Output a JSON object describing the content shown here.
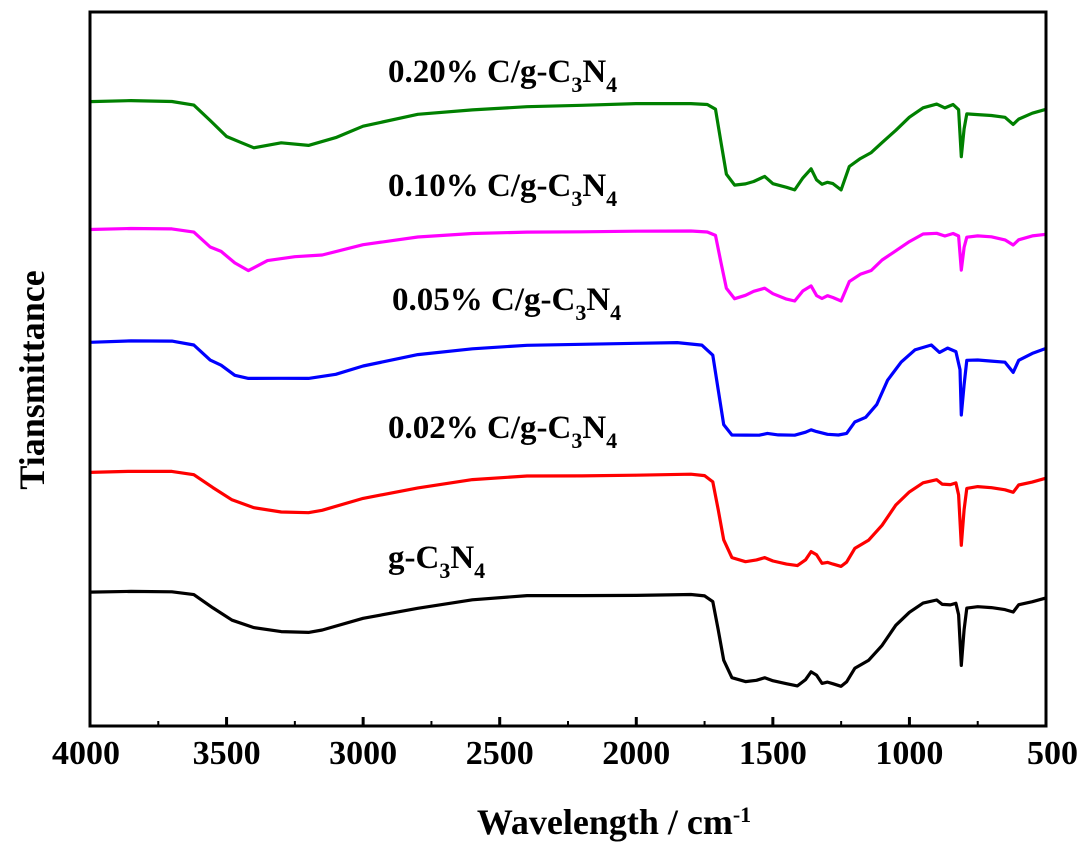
{
  "chart_data": {
    "type": "line",
    "title": "",
    "xlabel": "Wavelength / cm",
    "xlabel_superscript": "-1",
    "ylabel": "Tiansmittance",
    "x_reversed": true,
    "xlim": [
      4000,
      500
    ],
    "xticks": [
      4000,
      3500,
      3000,
      2500,
      2000,
      1500,
      1000,
      500
    ],
    "yticks_shown": false,
    "grid": false,
    "legend": "inline labels",
    "series": [
      {
        "name": "g-C3N4",
        "label_parts": [
          "g-C",
          "3",
          "N",
          "4"
        ],
        "color": "#000000",
        "points": [
          [
            4000,
            0.98
          ],
          [
            3850,
            0.99
          ],
          [
            3700,
            0.985
          ],
          [
            3620,
            0.95
          ],
          [
            3550,
            0.82
          ],
          [
            3480,
            0.7
          ],
          [
            3400,
            0.62
          ],
          [
            3300,
            0.58
          ],
          [
            3200,
            0.575
          ],
          [
            3150,
            0.6
          ],
          [
            3000,
            0.72
          ],
          [
            2800,
            0.82
          ],
          [
            2600,
            0.9
          ],
          [
            2400,
            0.94
          ],
          [
            2200,
            0.945
          ],
          [
            2000,
            0.95
          ],
          [
            1800,
            0.955
          ],
          [
            1750,
            0.94
          ],
          [
            1720,
            0.88
          ],
          [
            1700,
            0.6
          ],
          [
            1680,
            0.3
          ],
          [
            1650,
            0.12
          ],
          [
            1600,
            0.08
          ],
          [
            1560,
            0.1
          ],
          [
            1530,
            0.12
          ],
          [
            1500,
            0.09
          ],
          [
            1450,
            0.06
          ],
          [
            1410,
            0.04
          ],
          [
            1380,
            0.1
          ],
          [
            1360,
            0.18
          ],
          [
            1340,
            0.15
          ],
          [
            1320,
            0.07
          ],
          [
            1300,
            0.08
          ],
          [
            1280,
            0.06
          ],
          [
            1250,
            0.04
          ],
          [
            1230,
            0.08
          ],
          [
            1200,
            0.22
          ],
          [
            1150,
            0.3
          ],
          [
            1100,
            0.45
          ],
          [
            1050,
            0.65
          ],
          [
            1000,
            0.78
          ],
          [
            950,
            0.87
          ],
          [
            900,
            0.9
          ],
          [
            880,
            0.86
          ],
          [
            850,
            0.85
          ],
          [
            830,
            0.87
          ],
          [
            820,
            0.75
          ],
          [
            810,
            0.25
          ],
          [
            800,
            0.6
          ],
          [
            790,
            0.82
          ],
          [
            750,
            0.83
          ],
          [
            700,
            0.82
          ],
          [
            650,
            0.8
          ],
          [
            620,
            0.78
          ],
          [
            600,
            0.85
          ],
          [
            550,
            0.88
          ],
          [
            500,
            0.92
          ]
        ]
      },
      {
        "name": "0.02% C/g-C3N4",
        "label_parts": [
          "0.02% C/g-C",
          "3",
          "N",
          "4"
        ],
        "color": "#ff0000",
        "points": [
          [
            4000,
            0.98
          ],
          [
            3850,
            0.99
          ],
          [
            3700,
            0.985
          ],
          [
            3620,
            0.95
          ],
          [
            3550,
            0.82
          ],
          [
            3480,
            0.7
          ],
          [
            3400,
            0.62
          ],
          [
            3300,
            0.58
          ],
          [
            3200,
            0.575
          ],
          [
            3150,
            0.6
          ],
          [
            3000,
            0.72
          ],
          [
            2800,
            0.82
          ],
          [
            2600,
            0.9
          ],
          [
            2400,
            0.94
          ],
          [
            2200,
            0.945
          ],
          [
            2000,
            0.95
          ],
          [
            1800,
            0.955
          ],
          [
            1750,
            0.94
          ],
          [
            1720,
            0.88
          ],
          [
            1700,
            0.6
          ],
          [
            1680,
            0.3
          ],
          [
            1650,
            0.12
          ],
          [
            1600,
            0.08
          ],
          [
            1560,
            0.1
          ],
          [
            1530,
            0.12
          ],
          [
            1500,
            0.09
          ],
          [
            1450,
            0.06
          ],
          [
            1410,
            0.04
          ],
          [
            1380,
            0.1
          ],
          [
            1360,
            0.18
          ],
          [
            1340,
            0.15
          ],
          [
            1320,
            0.07
          ],
          [
            1300,
            0.08
          ],
          [
            1280,
            0.06
          ],
          [
            1250,
            0.04
          ],
          [
            1230,
            0.08
          ],
          [
            1200,
            0.22
          ],
          [
            1150,
            0.3
          ],
          [
            1100,
            0.45
          ],
          [
            1050,
            0.65
          ],
          [
            1000,
            0.78
          ],
          [
            950,
            0.87
          ],
          [
            900,
            0.9
          ],
          [
            880,
            0.86
          ],
          [
            850,
            0.85
          ],
          [
            830,
            0.87
          ],
          [
            820,
            0.75
          ],
          [
            810,
            0.25
          ],
          [
            800,
            0.6
          ],
          [
            790,
            0.82
          ],
          [
            750,
            0.83
          ],
          [
            700,
            0.82
          ],
          [
            650,
            0.8
          ],
          [
            620,
            0.78
          ],
          [
            600,
            0.85
          ],
          [
            550,
            0.88
          ],
          [
            500,
            0.92
          ]
        ]
      },
      {
        "name": "0.05% C/g-C3N4",
        "label_parts": [
          "0.05% C/g-C",
          "3",
          "N",
          "4"
        ],
        "color": "#0000ff",
        "points": [
          [
            4000,
            0.98
          ],
          [
            3850,
            0.99
          ],
          [
            3700,
            0.985
          ],
          [
            3620,
            0.95
          ],
          [
            3560,
            0.8
          ],
          [
            3520,
            0.75
          ],
          [
            3470,
            0.65
          ],
          [
            3420,
            0.62
          ],
          [
            3300,
            0.62
          ],
          [
            3200,
            0.62
          ],
          [
            3100,
            0.66
          ],
          [
            3000,
            0.74
          ],
          [
            2800,
            0.85
          ],
          [
            2600,
            0.91
          ],
          [
            2400,
            0.95
          ],
          [
            2200,
            0.96
          ],
          [
            2000,
            0.965
          ],
          [
            1850,
            0.97
          ],
          [
            1760,
            0.95
          ],
          [
            1720,
            0.85
          ],
          [
            1700,
            0.5
          ],
          [
            1680,
            0.15
          ],
          [
            1650,
            0.05
          ],
          [
            1600,
            0.05
          ],
          [
            1550,
            0.05
          ],
          [
            1520,
            0.07
          ],
          [
            1480,
            0.05
          ],
          [
            1420,
            0.05
          ],
          [
            1380,
            0.08
          ],
          [
            1360,
            0.1
          ],
          [
            1340,
            0.08
          ],
          [
            1300,
            0.06
          ],
          [
            1260,
            0.05
          ],
          [
            1230,
            0.07
          ],
          [
            1200,
            0.18
          ],
          [
            1160,
            0.23
          ],
          [
            1120,
            0.35
          ],
          [
            1080,
            0.6
          ],
          [
            1030,
            0.78
          ],
          [
            980,
            0.9
          ],
          [
            920,
            0.95
          ],
          [
            890,
            0.88
          ],
          [
            860,
            0.92
          ],
          [
            830,
            0.88
          ],
          [
            815,
            0.7
          ],
          [
            810,
            0.25
          ],
          [
            800,
            0.55
          ],
          [
            790,
            0.8
          ],
          [
            750,
            0.8
          ],
          [
            700,
            0.79
          ],
          [
            650,
            0.78
          ],
          [
            620,
            0.68
          ],
          [
            600,
            0.8
          ],
          [
            550,
            0.87
          ],
          [
            500,
            0.92
          ]
        ]
      },
      {
        "name": "0.10% C/g-C3N4",
        "label_parts": [
          "0.10% C/g-C",
          "3",
          "N",
          "4"
        ],
        "color": "#ff00ff",
        "points": [
          [
            4000,
            0.98
          ],
          [
            3850,
            0.99
          ],
          [
            3700,
            0.985
          ],
          [
            3620,
            0.95
          ],
          [
            3560,
            0.75
          ],
          [
            3520,
            0.7
          ],
          [
            3470,
            0.55
          ],
          [
            3420,
            0.45
          ],
          [
            3350,
            0.58
          ],
          [
            3250,
            0.63
          ],
          [
            3150,
            0.65
          ],
          [
            3000,
            0.78
          ],
          [
            2800,
            0.88
          ],
          [
            2600,
            0.93
          ],
          [
            2400,
            0.95
          ],
          [
            2200,
            0.95
          ],
          [
            2000,
            0.955
          ],
          [
            1800,
            0.96
          ],
          [
            1740,
            0.95
          ],
          [
            1710,
            0.9
          ],
          [
            1690,
            0.55
          ],
          [
            1670,
            0.22
          ],
          [
            1640,
            0.08
          ],
          [
            1600,
            0.13
          ],
          [
            1570,
            0.18
          ],
          [
            1530,
            0.22
          ],
          [
            1500,
            0.15
          ],
          [
            1450,
            0.08
          ],
          [
            1420,
            0.05
          ],
          [
            1390,
            0.18
          ],
          [
            1360,
            0.25
          ],
          [
            1340,
            0.12
          ],
          [
            1320,
            0.08
          ],
          [
            1300,
            0.12
          ],
          [
            1280,
            0.1
          ],
          [
            1250,
            0.05
          ],
          [
            1220,
            0.3
          ],
          [
            1180,
            0.4
          ],
          [
            1140,
            0.45
          ],
          [
            1100,
            0.58
          ],
          [
            1050,
            0.7
          ],
          [
            1000,
            0.82
          ],
          [
            950,
            0.92
          ],
          [
            900,
            0.93
          ],
          [
            870,
            0.9
          ],
          [
            840,
            0.93
          ],
          [
            820,
            0.9
          ],
          [
            810,
            0.45
          ],
          [
            800,
            0.75
          ],
          [
            790,
            0.88
          ],
          [
            750,
            0.9
          ],
          [
            700,
            0.89
          ],
          [
            650,
            0.85
          ],
          [
            620,
            0.78
          ],
          [
            600,
            0.85
          ],
          [
            550,
            0.9
          ],
          [
            500,
            0.92
          ]
        ]
      },
      {
        "name": "0.20% C/g-C3N4",
        "label_parts": [
          "0.20% C/g-C",
          "3",
          "N",
          "4"
        ],
        "color": "#008000",
        "points": [
          [
            4000,
            0.98
          ],
          [
            3850,
            0.99
          ],
          [
            3700,
            0.985
          ],
          [
            3620,
            0.95
          ],
          [
            3560,
            0.78
          ],
          [
            3500,
            0.62
          ],
          [
            3450,
            0.56
          ],
          [
            3400,
            0.5
          ],
          [
            3300,
            0.55
          ],
          [
            3200,
            0.52
          ],
          [
            3100,
            0.6
          ],
          [
            3000,
            0.72
          ],
          [
            2800,
            0.85
          ],
          [
            2600,
            0.9
          ],
          [
            2400,
            0.93
          ],
          [
            2200,
            0.94
          ],
          [
            2000,
            0.96
          ],
          [
            1800,
            0.965
          ],
          [
            1740,
            0.95
          ],
          [
            1710,
            0.9
          ],
          [
            1690,
            0.55
          ],
          [
            1670,
            0.22
          ],
          [
            1640,
            0.1
          ],
          [
            1600,
            0.12
          ],
          [
            1570,
            0.14
          ],
          [
            1530,
            0.2
          ],
          [
            1500,
            0.12
          ],
          [
            1450,
            0.08
          ],
          [
            1420,
            0.05
          ],
          [
            1390,
            0.18
          ],
          [
            1360,
            0.28
          ],
          [
            1340,
            0.16
          ],
          [
            1320,
            0.11
          ],
          [
            1300,
            0.13
          ],
          [
            1280,
            0.12
          ],
          [
            1250,
            0.05
          ],
          [
            1220,
            0.3
          ],
          [
            1180,
            0.38
          ],
          [
            1140,
            0.45
          ],
          [
            1100,
            0.55
          ],
          [
            1050,
            0.68
          ],
          [
            1000,
            0.82
          ],
          [
            950,
            0.92
          ],
          [
            900,
            0.96
          ],
          [
            870,
            0.92
          ],
          [
            840,
            0.95
          ],
          [
            820,
            0.9
          ],
          [
            810,
            0.4
          ],
          [
            800,
            0.7
          ],
          [
            790,
            0.85
          ],
          [
            750,
            0.85
          ],
          [
            700,
            0.84
          ],
          [
            650,
            0.82
          ],
          [
            620,
            0.74
          ],
          [
            600,
            0.8
          ],
          [
            550,
            0.86
          ],
          [
            500,
            0.9
          ]
        ]
      }
    ]
  }
}
